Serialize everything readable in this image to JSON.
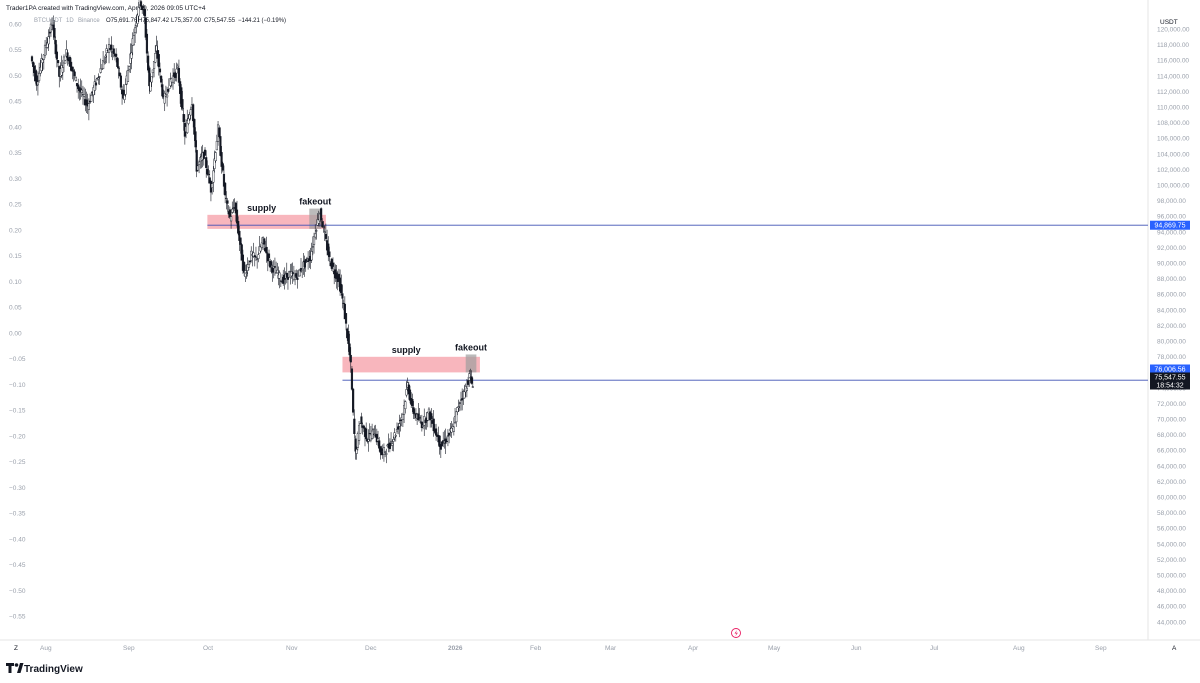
{
  "header": {
    "credit": "Trader1PA created with TradingView.com, Apr 19, 2026 09:05 UTC+4",
    "symbol": "BTCUSDT",
    "interval": "1D",
    "exchange": "Binance",
    "ohlc": {
      "open": "O75,691.76",
      "high": "H75,847.42",
      "low": "L75,357.00",
      "close": "C75,547.55",
      "change": "−144.21 (−0.19%)"
    }
  },
  "currency": "USDT",
  "footer": {
    "brand": "TradingView",
    "left_btn": "Z",
    "right_btn": "A"
  },
  "colors": {
    "up_candle": "#ffffff",
    "down_candle": "#131722",
    "zone_fill": "#f7a9b2",
    "fakeout_fill": "#9e9e9e",
    "level_line": "#3f51b5",
    "price_tag": "#2962ff",
    "dark_tag": "#131722"
  },
  "chart_data": {
    "type": "candlestick",
    "right_axis": {
      "ylim": [
        43000,
        121000
      ],
      "ticks": [
        "120,000.00",
        "118,000.00",
        "116,000.00",
        "114,000.00",
        "112,000.00",
        "110,000.00",
        "108,000.00",
        "106,000.00",
        "104,000.00",
        "102,000.00",
        "100,000.00",
        "98,000.00",
        "96,000.00",
        "94,000.00",
        "92,000.00",
        "90,000.00",
        "88,000.00",
        "86,000.00",
        "84,000.00",
        "82,000.00",
        "80,000.00",
        "78,000.00",
        "76,000.00",
        "74,000.00",
        "72,000.00",
        "70,000.00",
        "68,000.00",
        "66,000.00",
        "64,000.00",
        "62,000.00",
        "60,000.00",
        "58,000.00",
        "56,000.00",
        "54,000.00",
        "52,000.00",
        "50,000.00",
        "48,000.00",
        "46,000.00",
        "44,000.00"
      ]
    },
    "left_axis": {
      "ticks": [
        "0.60",
        "0.55",
        "0.50",
        "0.45",
        "0.40",
        "0.35",
        "0.30",
        "0.25",
        "0.20",
        "0.15",
        "0.10",
        "0.05",
        "0.00",
        "−0.05",
        "−0.10",
        "−0.15",
        "−0.20",
        "−0.25",
        "−0.30",
        "−0.35",
        "−0.40",
        "−0.45",
        "−0.50",
        "−0.55"
      ]
    },
    "x_axis": {
      "ticks": [
        "Aug",
        "Sep",
        "Oct",
        "Nov",
        "Dec",
        "2026",
        "Feb",
        "Mar",
        "Apr",
        "May",
        "Jun",
        "Jul",
        "Aug",
        "Sep"
      ]
    },
    "price_path": [
      [
        0,
        116500
      ],
      [
        5,
        113200
      ],
      [
        12,
        117500
      ],
      [
        18,
        120800
      ],
      [
        24,
        114000
      ],
      [
        30,
        117000
      ],
      [
        40,
        112500
      ],
      [
        48,
        110200
      ],
      [
        58,
        114500
      ],
      [
        66,
        117800
      ],
      [
        72,
        116200
      ],
      [
        78,
        111000
      ],
      [
        86,
        118500
      ],
      [
        92,
        124000
      ],
      [
        96,
        121500
      ],
      [
        100,
        112500
      ],
      [
        106,
        117500
      ],
      [
        112,
        110800
      ],
      [
        118,
        113500
      ],
      [
        124,
        114800
      ],
      [
        130,
        106500
      ],
      [
        136,
        110800
      ],
      [
        140,
        102200
      ],
      [
        146,
        104000
      ],
      [
        152,
        99500
      ],
      [
        158,
        107200
      ],
      [
        164,
        98500
      ],
      [
        168,
        95800
      ],
      [
        172,
        97500
      ],
      [
        176,
        93000
      ],
      [
        180,
        88500
      ],
      [
        186,
        91000
      ],
      [
        190,
        90500
      ],
      [
        196,
        92800
      ],
      [
        202,
        89800
      ],
      [
        206,
        89000
      ],
      [
        212,
        87800
      ],
      [
        218,
        88600
      ],
      [
        224,
        88200
      ],
      [
        230,
        89800
      ],
      [
        236,
        90800
      ],
      [
        240,
        94200
      ],
      [
        244,
        96500
      ],
      [
        248,
        93500
      ],
      [
        252,
        90500
      ],
      [
        256,
        89000
      ],
      [
        260,
        87800
      ],
      [
        264,
        84500
      ],
      [
        268,
        79500
      ],
      [
        270,
        76800
      ],
      [
        272,
        70500
      ],
      [
        274,
        65500
      ],
      [
        278,
        69800
      ],
      [
        284,
        67500
      ],
      [
        290,
        68500
      ],
      [
        296,
        65500
      ],
      [
        302,
        66500
      ],
      [
        308,
        68300
      ],
      [
        314,
        70800
      ],
      [
        318,
        74500
      ],
      [
        322,
        71200
      ],
      [
        326,
        70200
      ],
      [
        330,
        69400
      ],
      [
        336,
        70800
      ],
      [
        342,
        68200
      ],
      [
        346,
        66600
      ],
      [
        350,
        67300
      ],
      [
        356,
        68800
      ],
      [
        362,
        72400
      ],
      [
        366,
        73500
      ],
      [
        370,
        75500
      ],
      [
        372,
        74600
      ]
    ],
    "annotations": [
      {
        "label": "supply",
        "type": "zone",
        "price_top": 96200,
        "price_bottom": 94400,
        "day_start": 148,
        "day_end": 248
      },
      {
        "label": "fakeout",
        "type": "box",
        "price_top": 97000,
        "price_bottom": 94400,
        "day_start": 234,
        "day_end": 244
      },
      {
        "label": "supply",
        "type": "zone",
        "price_top": 78000,
        "price_bottom": 76000,
        "day_start": 262,
        "day_end": 378
      },
      {
        "label": "fakeout",
        "type": "box",
        "price_top": 78300,
        "price_bottom": 76000,
        "day_start": 366,
        "day_end": 375
      }
    ],
    "levels": [
      {
        "price": 94869.75,
        "label": "94,869.75",
        "day_start": 148
      },
      {
        "price": 75000,
        "day_start": 262
      }
    ],
    "price_tags": [
      {
        "label": "76,006.56",
        "price": 76006.56
      },
      {
        "label": "75,547.55",
        "price": 75547.55
      },
      {
        "label": "18:54:32",
        "price": 75547.55
      }
    ]
  }
}
